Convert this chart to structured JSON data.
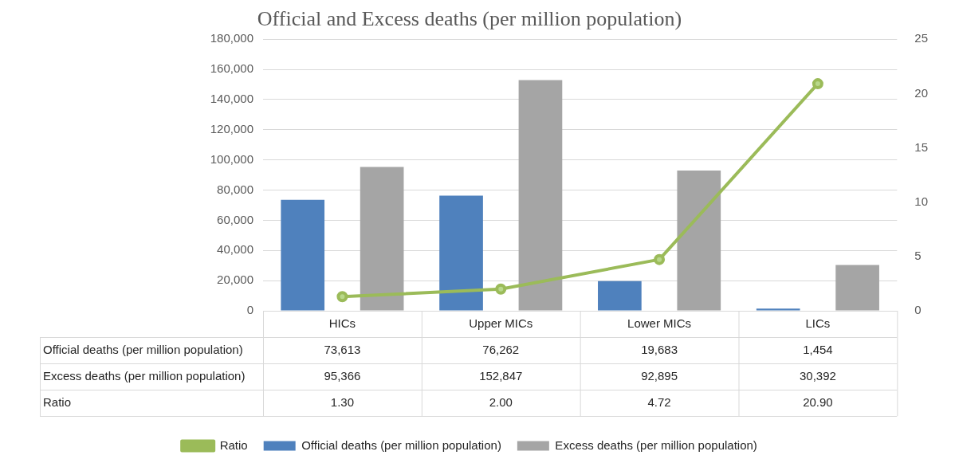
{
  "chart_data": {
    "type": "bar",
    "title": "Official and Excess deaths (per million population)",
    "categories": [
      "HICs",
      "Upper MICs",
      "Lower MICs",
      "LICs"
    ],
    "series": [
      {
        "name": "Official deaths (per million population)",
        "color": "#4f81bd",
        "values": [
          73613,
          76262,
          19683,
          1454
        ],
        "value_labels": [
          "73,613",
          "76,262",
          "19,683",
          "1,454"
        ]
      },
      {
        "name": "Excess deaths (per million population)",
        "color": "#a5a5a5",
        "values": [
          95366,
          152847,
          92895,
          30392
        ],
        "value_labels": [
          "95,366",
          "152,847",
          "92,895",
          "30,392"
        ]
      },
      {
        "name": "Ratio",
        "type": "line",
        "axis": "y2",
        "color": "#9bbb59",
        "values": [
          1.3,
          2.0,
          4.72,
          20.9
        ],
        "value_labels": [
          "1.30",
          "2.00",
          "4.72",
          "20.90"
        ]
      }
    ],
    "ylim": [
      0,
      180000
    ],
    "yticks": [
      {
        "value": 0,
        "label": "0"
      },
      {
        "value": 20000,
        "label": "20,000"
      },
      {
        "value": 40000,
        "label": "40,000"
      },
      {
        "value": 60000,
        "label": "60,000"
      },
      {
        "value": 80000,
        "label": "80,000"
      },
      {
        "value": 100000,
        "label": "100,000"
      },
      {
        "value": 120000,
        "label": "120,000"
      },
      {
        "value": 140000,
        "label": "140,000"
      },
      {
        "value": 160000,
        "label": "160,000"
      },
      {
        "value": 180000,
        "label": "180,000"
      }
    ],
    "y2lim": [
      0,
      25
    ],
    "y2ticks": [
      0,
      5,
      10,
      15,
      20,
      25
    ],
    "grid": "y",
    "legend": "bottom",
    "marker": "circle"
  }
}
